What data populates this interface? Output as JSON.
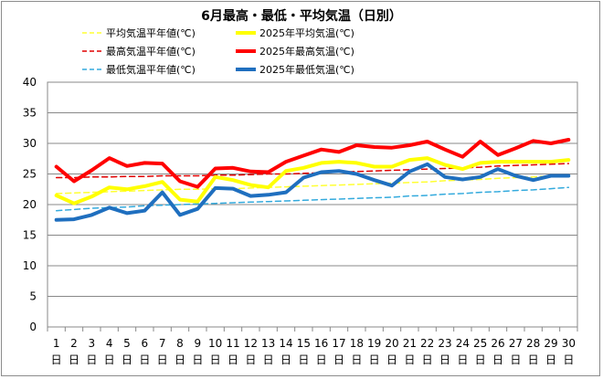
{
  "chart_data": {
    "type": "line",
    "title": "6月最高・最低・平均気温（日別）",
    "xlabel": "",
    "ylabel": "",
    "ylim": [
      0,
      40
    ],
    "yticks": [
      0,
      5,
      10,
      15,
      20,
      25,
      30,
      35,
      40
    ],
    "x": [
      1,
      2,
      3,
      4,
      5,
      6,
      7,
      8,
      9,
      10,
      11,
      12,
      13,
      14,
      15,
      16,
      17,
      18,
      19,
      20,
      21,
      22,
      23,
      24,
      25,
      26,
      27,
      28,
      29,
      30
    ],
    "x_suffix": "日",
    "grid": "horizontal",
    "legend_position": "top",
    "series": [
      {
        "name": "平均気温平年値(℃)",
        "style": "dashed",
        "color": "#ffff33",
        "width": 1.5,
        "values": [
          21.8,
          21.9,
          22.0,
          22.1,
          22.2,
          22.3,
          22.4,
          22.5,
          22.5,
          22.6,
          22.6,
          22.7,
          22.8,
          22.9,
          23.0,
          23.1,
          23.2,
          23.3,
          23.4,
          23.5,
          23.6,
          23.7,
          23.9,
          24.0,
          24.1,
          24.3,
          24.4,
          24.5,
          24.7,
          24.8
        ]
      },
      {
        "name": "2025年平均気温(℃)",
        "style": "solid",
        "color": "#ffff00",
        "width": 4,
        "values": [
          21.5,
          20.2,
          21.3,
          22.8,
          22.5,
          23.0,
          23.7,
          20.8,
          20.5,
          24.5,
          24.0,
          23.2,
          22.8,
          25.5,
          26.0,
          26.8,
          27.0,
          26.8,
          26.2,
          26.2,
          27.3,
          27.6,
          26.5,
          25.8,
          26.8,
          27.0,
          27.0,
          27.0,
          27.0,
          27.3
        ]
      },
      {
        "name": "最高気温平年値(℃)",
        "style": "dashed",
        "color": "#e00000",
        "width": 1.5,
        "values": [
          24.4,
          24.4,
          24.5,
          24.5,
          24.6,
          24.6,
          24.7,
          24.7,
          24.7,
          24.8,
          24.8,
          24.9,
          25.0,
          25.0,
          25.1,
          25.2,
          25.3,
          25.4,
          25.5,
          25.6,
          25.7,
          25.8,
          25.9,
          26.0,
          26.1,
          26.3,
          26.4,
          26.5,
          26.6,
          26.7
        ]
      },
      {
        "name": "2025年最高気温(℃)",
        "style": "solid",
        "color": "#ff0000",
        "width": 4,
        "values": [
          26.2,
          23.8,
          25.6,
          27.6,
          26.3,
          26.8,
          26.7,
          23.8,
          22.9,
          25.9,
          26.0,
          25.4,
          25.3,
          27.0,
          28.0,
          29.0,
          28.6,
          29.7,
          29.4,
          29.3,
          29.7,
          30.3,
          29.0,
          27.8,
          30.3,
          28.1,
          29.2,
          30.4,
          30.0,
          30.6
        ]
      },
      {
        "name": "最低気温平年値(℃)",
        "style": "dashed",
        "color": "#33aadd",
        "width": 1.5,
        "values": [
          19.0,
          19.2,
          19.4,
          19.5,
          19.6,
          19.8,
          19.9,
          20.0,
          20.1,
          20.2,
          20.3,
          20.4,
          20.5,
          20.6,
          20.7,
          20.8,
          20.9,
          21.0,
          21.1,
          21.2,
          21.4,
          21.5,
          21.7,
          21.8,
          22.0,
          22.1,
          22.3,
          22.4,
          22.6,
          22.8
        ]
      },
      {
        "name": "2025年最低気温(℃)",
        "style": "solid",
        "color": "#1f6fbf",
        "width": 4,
        "values": [
          17.5,
          17.6,
          18.3,
          19.5,
          18.6,
          19.0,
          22.0,
          18.3,
          19.3,
          22.7,
          22.6,
          21.4,
          21.6,
          22.0,
          24.4,
          25.3,
          25.5,
          25.0,
          24.0,
          23.1,
          25.4,
          26.6,
          24.5,
          24.1,
          24.5,
          25.8,
          24.7,
          24.0,
          24.7,
          24.7
        ]
      }
    ]
  }
}
